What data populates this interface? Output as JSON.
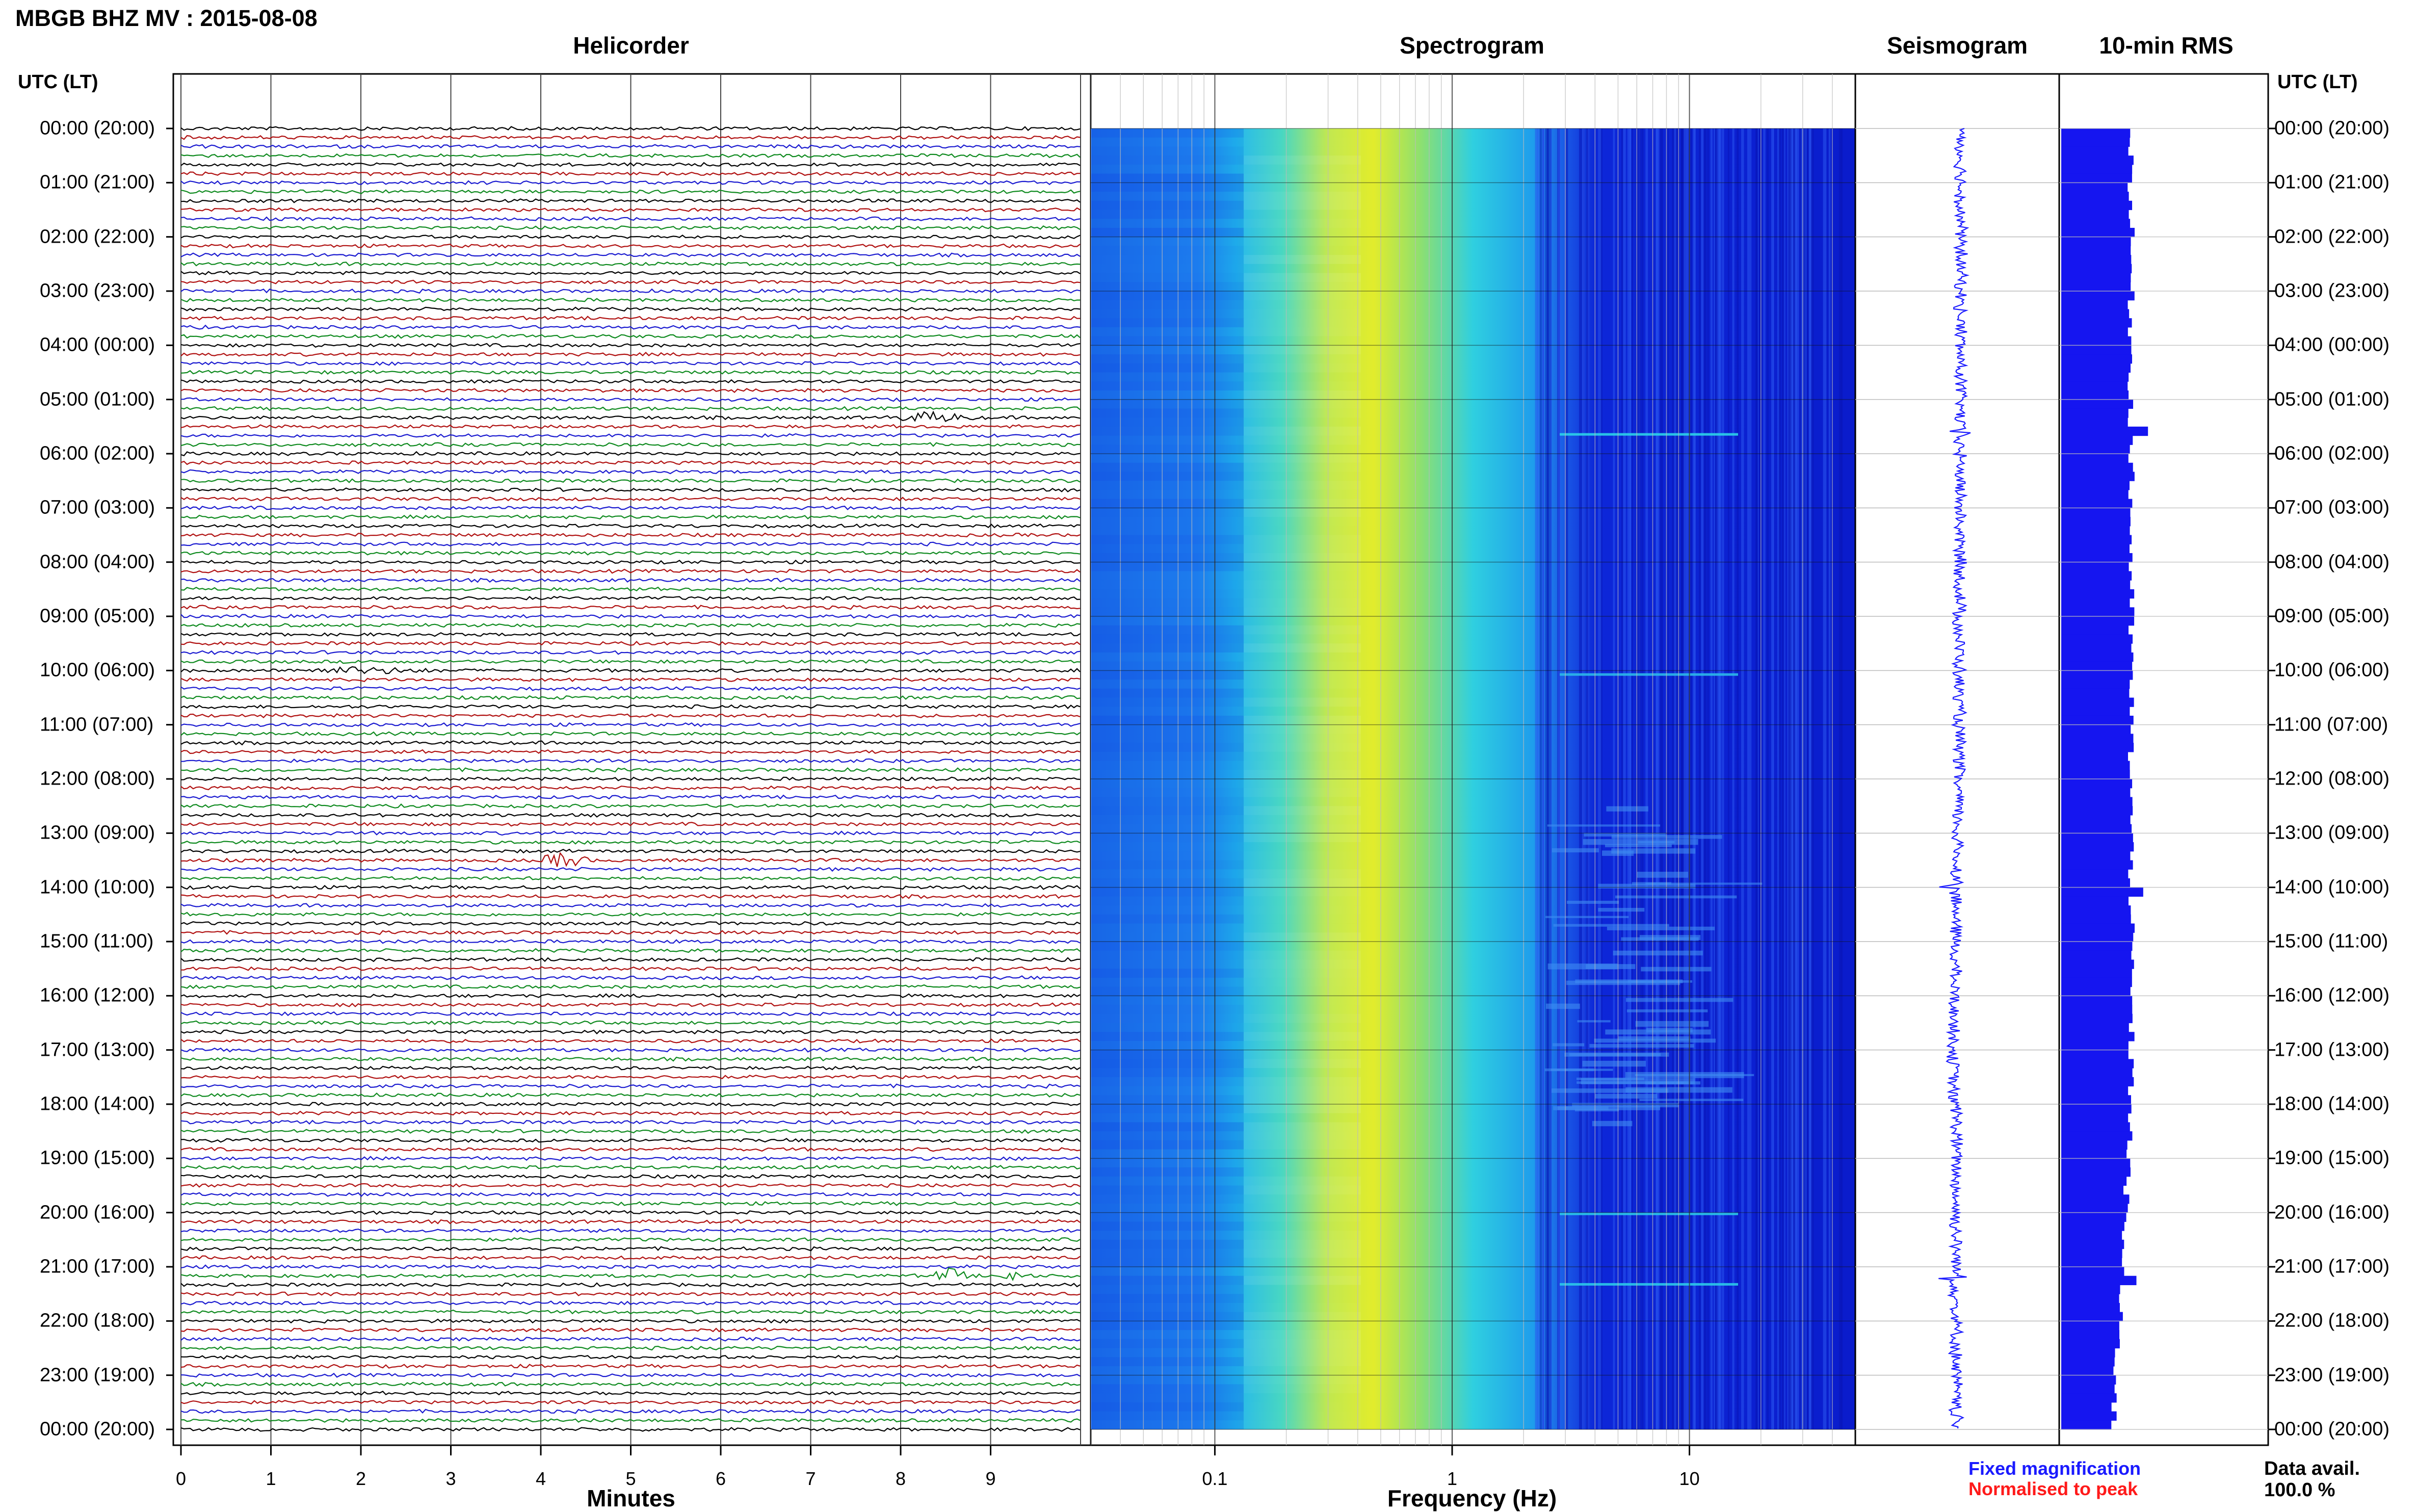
{
  "header": {
    "title": "MBGB BHZ MV : 2015-08-08"
  },
  "panels": {
    "helicorder": "Helicorder",
    "spectrogram": "Spectrogram",
    "seismogram": "Seismogram",
    "rms": "10-min RMS"
  },
  "axes": {
    "utc_label_left": "UTC (LT)",
    "utc_label_right": "UTC (LT)",
    "helicorder_xlabel": "Minutes",
    "spectrogram_xlabel": "Frequency (Hz)",
    "time_labels": [
      "00:00 (20:00)",
      "01:00 (21:00)",
      "02:00 (22:00)",
      "03:00 (23:00)",
      "04:00 (00:00)",
      "05:00 (01:00)",
      "06:00 (02:00)",
      "07:00 (03:00)",
      "08:00 (04:00)",
      "09:00 (05:00)",
      "10:00 (06:00)",
      "11:00 (07:00)",
      "12:00 (08:00)",
      "13:00 (09:00)",
      "14:00 (10:00)",
      "15:00 (11:00)",
      "16:00 (12:00)",
      "17:00 (13:00)",
      "18:00 (14:00)",
      "19:00 (15:00)",
      "20:00 (16:00)",
      "21:00 (17:00)",
      "22:00 (18:00)",
      "23:00 (19:00)",
      "00:00 (20:00)"
    ],
    "minute_ticks": [
      "0",
      "1",
      "2",
      "3",
      "4",
      "5",
      "6",
      "7",
      "8",
      "9"
    ],
    "frequency_ticks": [
      "0.1",
      "1",
      "10"
    ]
  },
  "legend": {
    "fixed": "Fixed magnification",
    "normalised": "Normalised to peak",
    "fixed_color": "#1a1aff",
    "normalised_color": "#ff1a1a"
  },
  "availability": {
    "label": "Data avail.",
    "value": "100.0 %"
  },
  "colors": {
    "trace_cycle": [
      "#000000",
      "#b01010",
      "#1a1ad0",
      "#0e8a1e"
    ],
    "seismogram": "#1a1aff",
    "rms_bar": "#1515f0"
  },
  "chart_data": [
    {
      "type": "line",
      "title": "Helicorder",
      "xlabel": "Minutes",
      "xlim": [
        0,
        10
      ],
      "rows_per_hour": 6,
      "hours": 24,
      "events": [
        {
          "row": 32,
          "minute_start": 7.8,
          "minute_end": 8.9,
          "amplitude": "large"
        },
        {
          "row": 60,
          "minute_start": 1.0,
          "minute_end": 3.0,
          "amplitude": "small"
        },
        {
          "row": 81,
          "minute_start": 3.9,
          "minute_end": 4.6,
          "amplitude": "medium"
        },
        {
          "row": 127,
          "minute_start": 8.3,
          "minute_end": 8.8,
          "amplitude": "medium"
        },
        {
          "row": 127,
          "minute_start": 9.1,
          "minute_end": 9.4,
          "amplitude": "medium"
        }
      ]
    },
    {
      "type": "heatmap",
      "title": "Spectrogram",
      "xlabel": "Frequency (Hz)",
      "xscale": "log",
      "xlim": [
        0.03,
        50
      ],
      "colormap": [
        "#0b1fd8",
        "#1e73ee",
        "#24c4e8",
        "#7ee27a",
        "#e8ea2a"
      ]
    },
    {
      "type": "line",
      "title": "Seismogram",
      "spikes_utc_hour": [
        5.6,
        14.0,
        21.2
      ]
    },
    {
      "type": "bar",
      "title": "10-min RMS",
      "rows": 144,
      "values_note": "relative RMS per 10-minute window",
      "peaks_utc_hour": [
        5.5,
        14.0,
        21.2
      ]
    }
  ]
}
